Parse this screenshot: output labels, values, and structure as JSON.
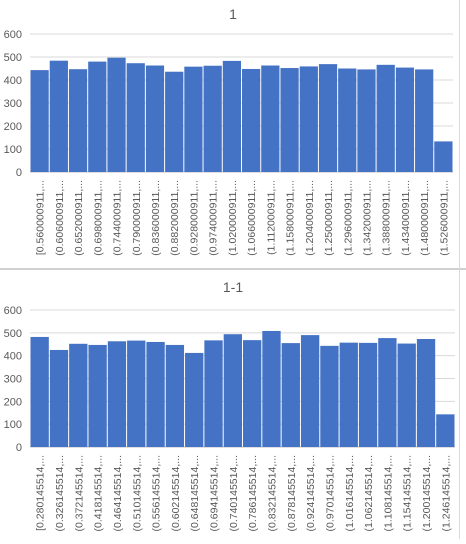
{
  "chart_data": [
    {
      "type": "bar",
      "title": "1",
      "xlabel": "",
      "ylabel": "",
      "ylim": [
        0,
        600
      ],
      "yticks": [
        "0",
        "100",
        "200",
        "300",
        "400",
        "500",
        "600"
      ],
      "grid": true,
      "legend": "none",
      "bar_color": "#4472c4",
      "categories": [
        "[0.560000911,...",
        "(0.606000911,...",
        "(0.652000911,...",
        "(0.698000911,...",
        "(0.744000911,...",
        "(0.790000911,...",
        "(0.836000911,...",
        "(0.882000911,...",
        "(0.928000911,...",
        "(0.974000911,...",
        "(1.020000911,...",
        "(1.066000911,...",
        "(1.112000911,...",
        "(1.158000911,...",
        "(1.204000911,...",
        "(1.250000911,...",
        "(1.296000911,...",
        "(1.342000911,...",
        "(1.388000911,...",
        "(1.434000911,...",
        "(1.480000911,...",
        "(1.526000911,..."
      ],
      "values": [
        443,
        484,
        447,
        480,
        497,
        473,
        463,
        436,
        458,
        462,
        483,
        448,
        463,
        452,
        459,
        469,
        450,
        446,
        466,
        454,
        446,
        133
      ]
    },
    {
      "type": "bar",
      "title": "1-1",
      "xlabel": "",
      "ylabel": "",
      "ylim": [
        0,
        600
      ],
      "yticks": [
        "0",
        "100",
        "200",
        "300",
        "400",
        "500",
        "600"
      ],
      "grid": true,
      "legend": "none",
      "bar_color": "#4472c4",
      "categories": [
        "[0.280145514,...",
        "(0.326145514,...",
        "(0.372145514,...",
        "(0.418145514,...",
        "(0.464145514,...",
        "(0.510145514,...",
        "(0.556145514,...",
        "(0.602145514,...",
        "(0.648145514,...",
        "(0.694145514,...",
        "(0.740145514,...",
        "(0.786145514,...",
        "(0.832145514,...",
        "(0.878145514,...",
        "(0.924145514,...",
        "(0.970145514,...",
        "(1.016145514,...",
        "(1.062145514,...",
        "(1.108145514,...",
        "(1.154145514,...",
        "(1.200145514,...",
        "(1.246145514,..."
      ],
      "values": [
        482,
        425,
        452,
        447,
        463,
        466,
        460,
        447,
        412,
        467,
        494,
        468,
        508,
        455,
        490,
        443,
        457,
        456,
        477,
        453,
        473,
        143
      ]
    }
  ]
}
